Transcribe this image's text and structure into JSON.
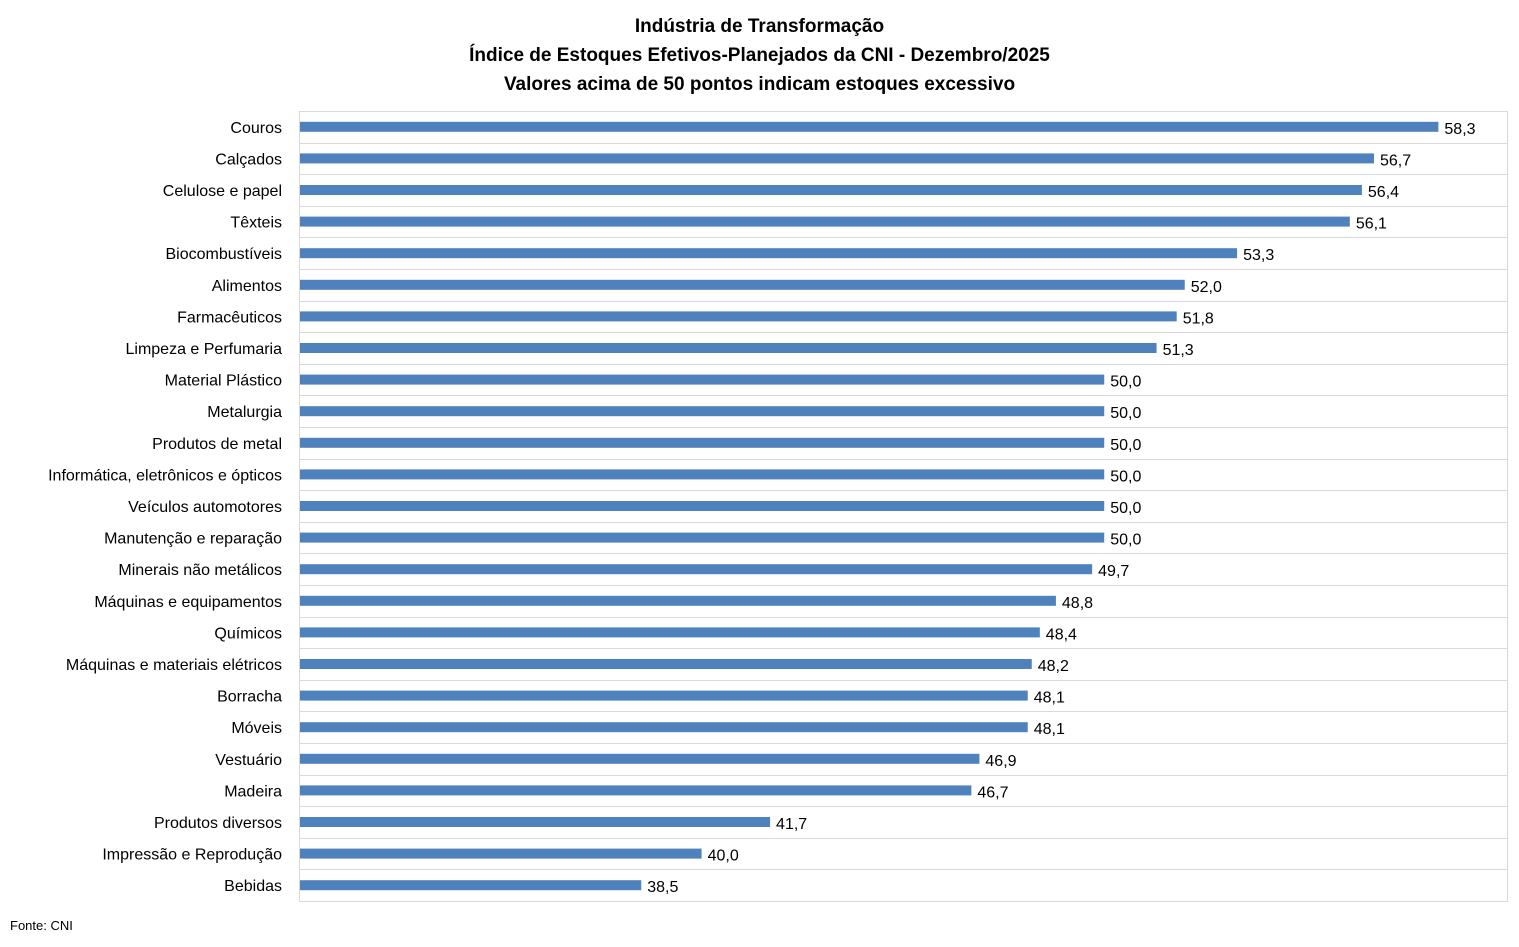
{
  "chart_data": {
    "type": "bar",
    "orientation": "horizontal",
    "title_lines": [
      "Indústria de Transformação",
      "Índice de Estoques Efetivos-Planejados da CNI - Dezembro/2025",
      "Valores acima de 50 pontos indicam estoques excessivo"
    ],
    "categories": [
      "Couros",
      "Calçados",
      "Celulose e papel",
      "Têxteis",
      "Biocombustíveis",
      "Alimentos",
      "Farmacêuticos",
      "Limpeza e Perfumaria",
      "Material Plástico",
      "Metalurgia",
      "Produtos de metal",
      "Informática, eletrônicos e ópticos",
      "Veículos automotores",
      "Manutenção e reparação",
      "Minerais não metálicos",
      "Máquinas e equipamentos",
      "Químicos",
      "Máquinas e materiais elétricos",
      "Borracha",
      "Móveis",
      "Vestuário",
      "Madeira",
      "Produtos diversos",
      "Impressão e Reprodução",
      "Bebidas"
    ],
    "values": [
      58.3,
      56.7,
      56.4,
      56.1,
      53.3,
      52.0,
      51.8,
      51.3,
      50.0,
      50.0,
      50.0,
      50.0,
      50.0,
      50.0,
      49.7,
      48.8,
      48.4,
      48.2,
      48.1,
      48.1,
      46.9,
      46.7,
      41.7,
      40.0,
      38.5
    ],
    "value_labels": [
      "58,3",
      "56,7",
      "56,4",
      "56,1",
      "53,3",
      "52,0",
      "51,8",
      "51,3",
      "50,0",
      "50,0",
      "50,0",
      "50,0",
      "50,0",
      "50,0",
      "49,7",
      "48,8",
      "48,4",
      "48,2",
      "48,1",
      "48,1",
      "46,9",
      "46,7",
      "41,7",
      "40,0",
      "38,5"
    ],
    "xlim": [
      30,
      60
    ],
    "grid": "horizontal separators",
    "legend": "none",
    "bar_color": "#4f81bd"
  },
  "source": "Fonte: CNI"
}
